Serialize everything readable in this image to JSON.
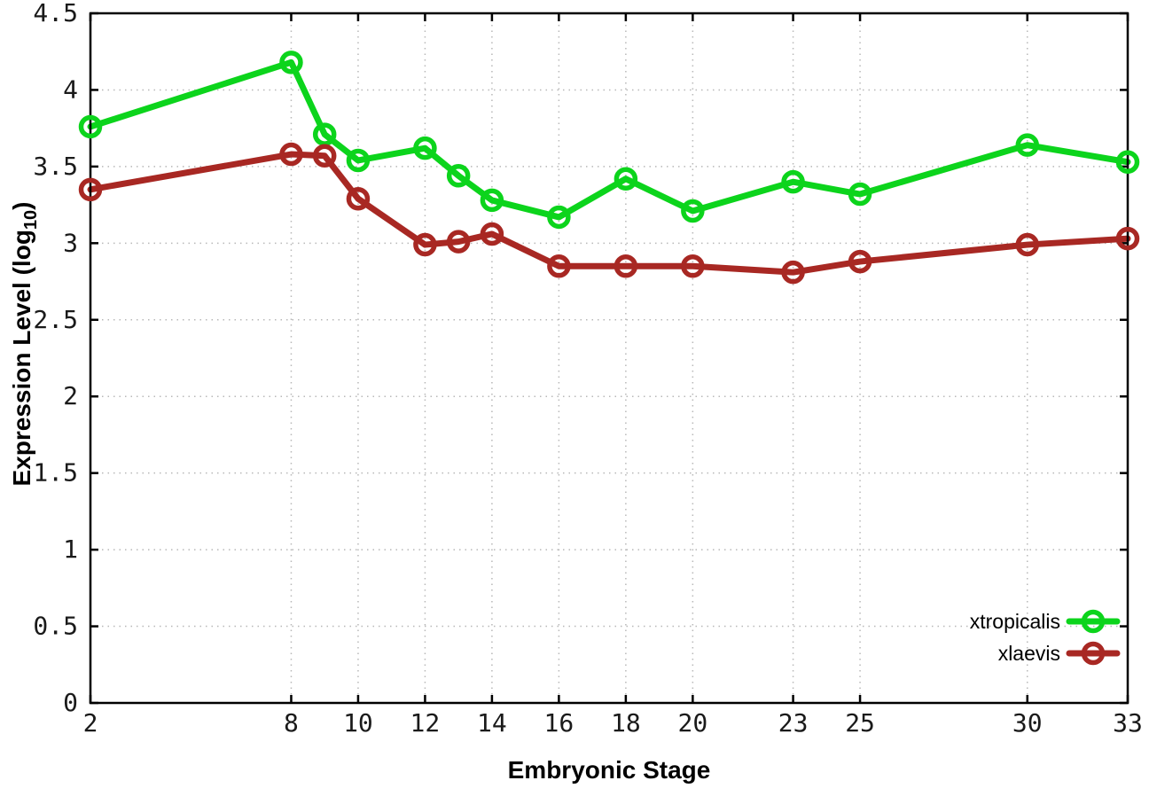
{
  "figure": {
    "background": "#ffffff",
    "ylabel_main": "Expression Level (log",
    "ylabel_sub": "10",
    "ylabel_close": ")"
  },
  "chart_data": {
    "type": "line",
    "title": "",
    "xlabel": "Embryonic Stage",
    "ylabel": "Expression Level (log10)",
    "x": [
      2,
      8,
      9,
      10,
      12,
      13,
      14,
      16,
      18,
      20,
      23,
      25,
      30,
      33
    ],
    "series": [
      {
        "name": "xtropicalis",
        "color": "#0cd41c",
        "values": [
          3.76,
          4.18,
          3.71,
          3.54,
          3.62,
          3.44,
          3.28,
          3.17,
          3.42,
          3.21,
          3.4,
          3.32,
          3.64,
          3.53
        ]
      },
      {
        "name": "xlaevis",
        "color": "#a82823",
        "values": [
          3.35,
          3.58,
          3.57,
          3.29,
          2.99,
          3.01,
          3.06,
          2.85,
          2.85,
          2.85,
          2.81,
          2.88,
          2.99,
          3.03
        ]
      }
    ],
    "xticks": [
      2,
      8,
      10,
      12,
      14,
      16,
      18,
      20,
      23,
      25,
      30,
      33
    ],
    "yticks": [
      0,
      0.5,
      1,
      1.5,
      2,
      2.5,
      3,
      3.5,
      4,
      4.5
    ],
    "xlim": [
      2,
      33
    ],
    "ylim": [
      0,
      4.5
    ],
    "grid": true,
    "grid_color": "#b8b8b8",
    "axis_color": "#000000",
    "legend_position": "bottom-right"
  }
}
